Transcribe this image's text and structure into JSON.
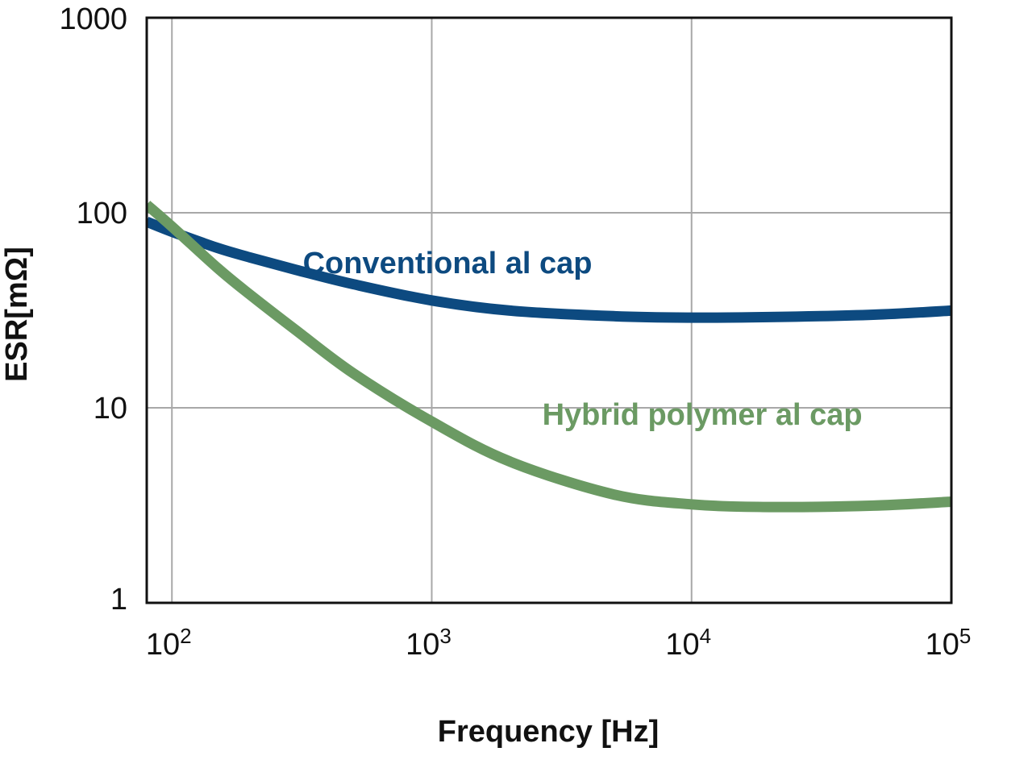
{
  "chart_data": {
    "type": "line",
    "title": "",
    "xlabel": "Frequency [Hz]",
    "ylabel": "ESR[mΩ]",
    "x_scale": "log",
    "y_scale": "log",
    "xlim": [
      80,
      100000
    ],
    "ylim": [
      1,
      1000
    ],
    "grid": true,
    "x_ticks": [
      {
        "value": 100,
        "base": "10",
        "exp": "2"
      },
      {
        "value": 1000,
        "base": "10",
        "exp": "3"
      },
      {
        "value": 10000,
        "base": "10",
        "exp": "4"
      },
      {
        "value": 100000,
        "base": "10",
        "exp": "5"
      }
    ],
    "y_ticks": [
      {
        "value": 1,
        "label": "1"
      },
      {
        "value": 10,
        "label": "10"
      },
      {
        "value": 100,
        "label": "100"
      },
      {
        "value": 1000,
        "label": "1000"
      }
    ],
    "series": [
      {
        "name": "Conventional al cap",
        "color": "#0d4a80",
        "label_at": {
          "x": 1150,
          "y": 49
        },
        "x": [
          80,
          100,
          150,
          200,
          300,
          500,
          1000,
          2000,
          5000,
          10000,
          20000,
          50000,
          100000
        ],
        "y": [
          90,
          80,
          66,
          59,
          51,
          43,
          35.5,
          31.5,
          29.5,
          29,
          29.2,
          30,
          31.5
        ]
      },
      {
        "name": "Hybrid polymer al cap",
        "color": "#6b9a63",
        "label_at": {
          "x": 11000,
          "y": 8.2
        },
        "x": [
          80,
          100,
          150,
          200,
          300,
          500,
          1000,
          2000,
          5000,
          10000,
          20000,
          50000,
          100000
        ],
        "y": [
          110,
          85,
          52,
          38,
          25,
          15,
          8.5,
          5.3,
          3.6,
          3.2,
          3.1,
          3.15,
          3.3
        ]
      }
    ]
  }
}
